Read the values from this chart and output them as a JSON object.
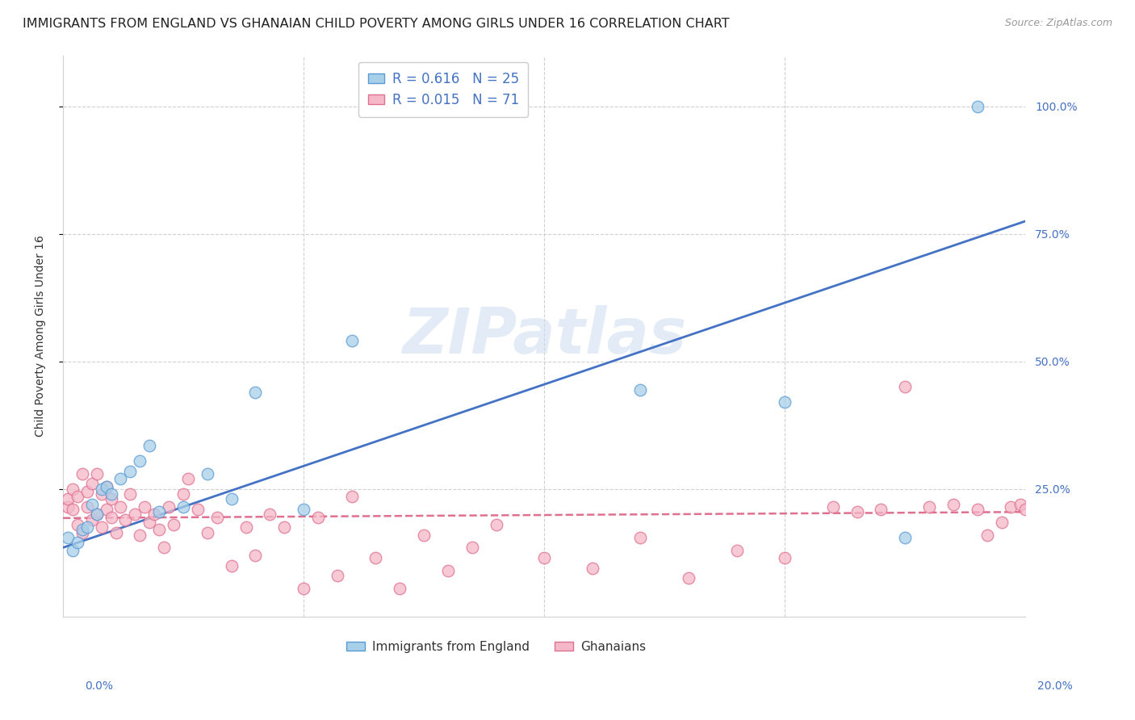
{
  "title": "IMMIGRANTS FROM ENGLAND VS GHANAIAN CHILD POVERTY AMONG GIRLS UNDER 16 CORRELATION CHART",
  "source": "Source: ZipAtlas.com",
  "ylabel": "Child Poverty Among Girls Under 16",
  "watermark": "ZIPatlas",
  "legend_r1": "R = 0.616",
  "legend_n1": "N = 25",
  "legend_r2": "R = 0.015",
  "legend_n2": "N = 71",
  "legend_label1": "Immigrants from England",
  "legend_label2": "Ghanaians",
  "blue_color": "#a8cfe8",
  "blue_edge_color": "#5b9bd5",
  "blue_line_color": "#4472c4",
  "pink_color": "#f4b8c8",
  "pink_edge_color": "#e07090",
  "pink_line_color": "#e07090",
  "xlim": [
    0.0,
    0.2
  ],
  "ylim": [
    0.0,
    1.1
  ],
  "ytick_positions": [
    0.25,
    0.5,
    0.75,
    1.0
  ],
  "ytick_labels": [
    "25.0%",
    "50.0%",
    "75.0%",
    "100.0%"
  ],
  "xtick_positions": [
    0.0,
    0.05,
    0.1,
    0.15,
    0.2
  ],
  "blue_scatter_x": [
    0.001,
    0.002,
    0.003,
    0.004,
    0.005,
    0.006,
    0.007,
    0.008,
    0.009,
    0.01,
    0.012,
    0.014,
    0.016,
    0.018,
    0.02,
    0.025,
    0.03,
    0.035,
    0.04,
    0.05,
    0.06,
    0.12,
    0.15,
    0.175,
    0.19
  ],
  "blue_scatter_y": [
    0.155,
    0.13,
    0.145,
    0.17,
    0.175,
    0.22,
    0.2,
    0.25,
    0.255,
    0.24,
    0.27,
    0.285,
    0.305,
    0.335,
    0.205,
    0.215,
    0.28,
    0.23,
    0.44,
    0.21,
    0.54,
    0.445,
    0.42,
    0.155,
    1.0
  ],
  "pink_scatter_x": [
    0.001,
    0.001,
    0.002,
    0.002,
    0.003,
    0.003,
    0.004,
    0.004,
    0.005,
    0.005,
    0.006,
    0.006,
    0.007,
    0.007,
    0.008,
    0.008,
    0.009,
    0.009,
    0.01,
    0.01,
    0.011,
    0.012,
    0.013,
    0.014,
    0.015,
    0.016,
    0.017,
    0.018,
    0.019,
    0.02,
    0.021,
    0.022,
    0.023,
    0.025,
    0.026,
    0.028,
    0.03,
    0.032,
    0.035,
    0.038,
    0.04,
    0.043,
    0.046,
    0.05,
    0.053,
    0.057,
    0.06,
    0.065,
    0.07,
    0.075,
    0.08,
    0.085,
    0.09,
    0.1,
    0.11,
    0.12,
    0.13,
    0.14,
    0.15,
    0.16,
    0.165,
    0.17,
    0.175,
    0.18,
    0.185,
    0.19,
    0.192,
    0.195,
    0.197,
    0.199,
    0.2
  ],
  "pink_scatter_y": [
    0.215,
    0.23,
    0.21,
    0.25,
    0.18,
    0.235,
    0.165,
    0.28,
    0.215,
    0.245,
    0.19,
    0.26,
    0.2,
    0.28,
    0.175,
    0.24,
    0.21,
    0.255,
    0.195,
    0.23,
    0.165,
    0.215,
    0.19,
    0.24,
    0.2,
    0.16,
    0.215,
    0.185,
    0.2,
    0.17,
    0.135,
    0.215,
    0.18,
    0.24,
    0.27,
    0.21,
    0.165,
    0.195,
    0.1,
    0.175,
    0.12,
    0.2,
    0.175,
    0.055,
    0.195,
    0.08,
    0.235,
    0.115,
    0.055,
    0.16,
    0.09,
    0.135,
    0.18,
    0.115,
    0.095,
    0.155,
    0.075,
    0.13,
    0.115,
    0.215,
    0.205,
    0.21,
    0.45,
    0.215,
    0.22,
    0.21,
    0.16,
    0.185,
    0.215,
    0.22,
    0.21
  ],
  "blue_line_x": [
    0.0,
    0.2
  ],
  "blue_line_y": [
    0.135,
    0.775
  ],
  "pink_line_x": [
    0.0,
    0.2
  ],
  "pink_line_y": [
    0.193,
    0.205
  ],
  "grid_color": "#d0d0d0",
  "background_color": "#ffffff",
  "title_fontsize": 11.5,
  "axis_label_fontsize": 10,
  "tick_fontsize": 10,
  "source_fontsize": 9,
  "scatter_size": 110,
  "scatter_alpha": 0.75
}
